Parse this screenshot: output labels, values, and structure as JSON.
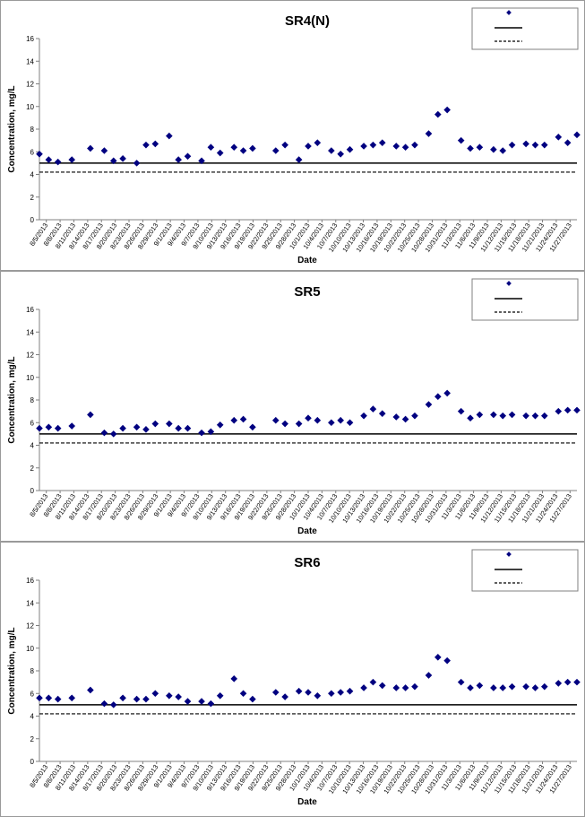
{
  "colors": {
    "marker": "#000080",
    "line": "#000000",
    "axis": "#808080"
  },
  "chart_data": [
    {
      "type": "scatter",
      "title": "SR4(N)",
      "xlabel": "Date",
      "ylabel": "Concentration, mg/L",
      "ylim": [
        0,
        16
      ],
      "yticks": [
        0,
        2,
        4,
        6,
        8,
        10,
        12,
        14,
        16
      ],
      "xlim": [
        "2013-08-05",
        "2013-11-29"
      ],
      "xtick_labels": [
        "8/5/2013",
        "8/8/2013",
        "8/11/2013",
        "8/14/2013",
        "8/17/2013",
        "8/20/2013",
        "8/23/2013",
        "8/26/2013",
        "8/29/2013",
        "9/1/2013",
        "9/4/2013",
        "9/7/2013",
        "9/10/2013",
        "9/13/2013",
        "9/16/2013",
        "9/19/2013",
        "9/22/2013",
        "9/25/2013",
        "9/28/2013",
        "10/1/2013",
        "10/4/2013",
        "10/7/2013",
        "10/10/2013",
        "10/13/2013",
        "10/16/2013",
        "10/19/2013",
        "10/22/2013",
        "10/25/2013",
        "10/28/2013",
        "10/31/2013",
        "11/3/2013",
        "11/6/2013",
        "11/9/2013",
        "11/12/2013",
        "11/15/2013",
        "11/18/2013",
        "11/21/2013",
        "11/24/2013",
        "11/27/2013"
      ],
      "x": [
        "2013-08-05",
        "2013-08-07",
        "2013-08-09",
        "2013-08-12",
        "2013-08-16",
        "2013-08-19",
        "2013-08-21",
        "2013-08-23",
        "2013-08-26",
        "2013-08-28",
        "2013-08-30",
        "2013-09-02",
        "2013-09-04",
        "2013-09-06",
        "2013-09-09",
        "2013-09-11",
        "2013-09-13",
        "2013-09-16",
        "2013-09-18",
        "2013-09-20",
        "2013-09-25",
        "2013-09-27",
        "2013-09-30",
        "2013-10-02",
        "2013-10-04",
        "2013-10-07",
        "2013-10-09",
        "2013-10-11",
        "2013-10-14",
        "2013-10-16",
        "2013-10-18",
        "2013-10-21",
        "2013-10-23",
        "2013-10-25",
        "2013-10-28",
        "2013-10-30",
        "2013-11-01",
        "2013-11-04",
        "2013-11-06",
        "2013-11-08",
        "2013-11-11",
        "2013-11-13",
        "2013-11-15",
        "2013-11-18",
        "2013-11-20",
        "2013-11-22",
        "2013-11-25",
        "2013-11-27",
        "2013-11-29"
      ],
      "y": [
        5.8,
        5.3,
        5.1,
        5.3,
        6.3,
        6.1,
        5.2,
        5.4,
        5.0,
        6.6,
        6.7,
        7.4,
        5.3,
        5.6,
        5.2,
        6.4,
        5.9,
        6.4,
        6.1,
        6.3,
        6.1,
        6.6,
        5.3,
        6.5,
        6.8,
        6.1,
        5.8,
        6.2,
        6.5,
        6.6,
        6.8,
        6.5,
        6.4,
        6.6,
        7.6,
        9.3,
        9.7,
        7.0,
        6.3,
        6.4,
        6.2,
        6.1,
        6.6,
        6.7,
        6.6,
        6.6,
        7.3,
        6.8,
        7.5
      ],
      "reference_lines": [
        5.0,
        4.2
      ],
      "legend_placement": "top-right"
    },
    {
      "type": "scatter",
      "title": "SR5",
      "xlabel": "Date",
      "ylabel": "Concentration, mg/L",
      "ylim": [
        0,
        16
      ],
      "yticks": [
        0,
        2,
        4,
        6,
        8,
        10,
        12,
        14,
        16
      ],
      "xlim": [
        "2013-08-05",
        "2013-11-29"
      ],
      "xtick_labels": [
        "8/5/2013",
        "8/8/2013",
        "8/11/2013",
        "8/14/2013",
        "8/17/2013",
        "8/20/2013",
        "8/23/2013",
        "8/26/2013",
        "8/29/2013",
        "9/1/2013",
        "9/4/2013",
        "9/7/2013",
        "9/10/2013",
        "9/13/2013",
        "9/16/2013",
        "9/19/2013",
        "9/22/2013",
        "9/25/2013",
        "9/28/2013",
        "10/1/2013",
        "10/4/2013",
        "10/7/2013",
        "10/10/2013",
        "10/13/2013",
        "10/16/2013",
        "10/19/2013",
        "10/22/2013",
        "10/25/2013",
        "10/28/2013",
        "10/31/2013",
        "11/3/2013",
        "11/6/2013",
        "11/9/2013",
        "11/12/2013",
        "11/15/2013",
        "11/18/2013",
        "11/21/2013",
        "11/24/2013",
        "11/27/2013"
      ],
      "x": [
        "2013-08-05",
        "2013-08-07",
        "2013-08-09",
        "2013-08-12",
        "2013-08-16",
        "2013-08-19",
        "2013-08-21",
        "2013-08-23",
        "2013-08-26",
        "2013-08-28",
        "2013-08-30",
        "2013-09-02",
        "2013-09-04",
        "2013-09-06",
        "2013-09-09",
        "2013-09-11",
        "2013-09-13",
        "2013-09-16",
        "2013-09-18",
        "2013-09-20",
        "2013-09-25",
        "2013-09-27",
        "2013-09-30",
        "2013-10-02",
        "2013-10-04",
        "2013-10-07",
        "2013-10-09",
        "2013-10-11",
        "2013-10-14",
        "2013-10-16",
        "2013-10-18",
        "2013-10-21",
        "2013-10-23",
        "2013-10-25",
        "2013-10-28",
        "2013-10-30",
        "2013-11-01",
        "2013-11-04",
        "2013-11-06",
        "2013-11-08",
        "2013-11-11",
        "2013-11-13",
        "2013-11-15",
        "2013-11-18",
        "2013-11-20",
        "2013-11-22",
        "2013-11-25",
        "2013-11-27",
        "2013-11-29"
      ],
      "y": [
        5.5,
        5.6,
        5.5,
        5.7,
        6.7,
        5.1,
        5.0,
        5.5,
        5.6,
        5.4,
        5.9,
        5.9,
        5.5,
        5.5,
        5.1,
        5.2,
        5.8,
        6.2,
        6.3,
        5.6,
        6.2,
        5.9,
        5.9,
        6.4,
        6.2,
        6.0,
        6.2,
        6.0,
        6.6,
        7.2,
        6.8,
        6.5,
        6.3,
        6.6,
        7.6,
        8.3,
        8.6,
        7.0,
        6.4,
        6.7,
        6.7,
        6.6,
        6.7,
        6.6,
        6.6,
        6.6,
        7.0,
        7.1,
        7.1
      ],
      "reference_lines": [
        5.0,
        4.2
      ],
      "legend_placement": "top-right"
    },
    {
      "type": "scatter",
      "title": "SR6",
      "xlabel": "Date",
      "ylabel": "Concentration, mg/L",
      "ylim": [
        0,
        16
      ],
      "yticks": [
        0,
        2,
        4,
        6,
        8,
        10,
        12,
        14,
        16
      ],
      "xlim": [
        "2013-08-05",
        "2013-11-29"
      ],
      "xtick_labels": [
        "8/5/2013",
        "8/8/2013",
        "8/11/2013",
        "8/14/2013",
        "8/17/2013",
        "8/20/2013",
        "8/23/2013",
        "8/26/2013",
        "8/29/2013",
        "9/1/2013",
        "9/4/2013",
        "9/7/2013",
        "9/10/2013",
        "9/13/2013",
        "9/16/2013",
        "9/19/2013",
        "9/22/2013",
        "9/25/2013",
        "9/28/2013",
        "10/1/2013",
        "10/4/2013",
        "10/7/2013",
        "10/10/2013",
        "10/13/2013",
        "10/16/2013",
        "10/19/2013",
        "10/22/2013",
        "10/25/2013",
        "10/28/2013",
        "10/31/2013",
        "11/3/2013",
        "11/6/2013",
        "11/9/2013",
        "11/12/2013",
        "11/15/2013",
        "11/18/2013",
        "11/21/2013",
        "11/24/2013",
        "11/27/2013"
      ],
      "x": [
        "2013-08-05",
        "2013-08-07",
        "2013-08-09",
        "2013-08-12",
        "2013-08-16",
        "2013-08-19",
        "2013-08-21",
        "2013-08-23",
        "2013-08-26",
        "2013-08-28",
        "2013-08-30",
        "2013-09-02",
        "2013-09-04",
        "2013-09-06",
        "2013-09-09",
        "2013-09-11",
        "2013-09-13",
        "2013-09-16",
        "2013-09-18",
        "2013-09-20",
        "2013-09-25",
        "2013-09-27",
        "2013-09-30",
        "2013-10-02",
        "2013-10-04",
        "2013-10-07",
        "2013-10-09",
        "2013-10-11",
        "2013-10-14",
        "2013-10-16",
        "2013-10-18",
        "2013-10-21",
        "2013-10-23",
        "2013-10-25",
        "2013-10-28",
        "2013-10-30",
        "2013-11-01",
        "2013-11-04",
        "2013-11-06",
        "2013-11-08",
        "2013-11-11",
        "2013-11-13",
        "2013-11-15",
        "2013-11-18",
        "2013-11-20",
        "2013-11-22",
        "2013-11-25",
        "2013-11-27",
        "2013-11-29"
      ],
      "y": [
        5.6,
        5.6,
        5.5,
        5.6,
        6.3,
        5.1,
        5.0,
        5.6,
        5.5,
        5.5,
        6.0,
        5.8,
        5.7,
        5.3,
        5.3,
        5.1,
        5.8,
        7.3,
        6.0,
        5.5,
        6.1,
        5.7,
        6.2,
        6.1,
        5.8,
        6.0,
        6.1,
        6.2,
        6.5,
        7.0,
        6.7,
        6.5,
        6.5,
        6.6,
        7.6,
        9.2,
        8.9,
        7.0,
        6.5,
        6.7,
        6.5,
        6.5,
        6.6,
        6.6,
        6.5,
        6.6,
        6.9,
        7.0,
        7.0
      ],
      "reference_lines": [
        5.0,
        4.2
      ],
      "legend_placement": "top-right"
    }
  ]
}
